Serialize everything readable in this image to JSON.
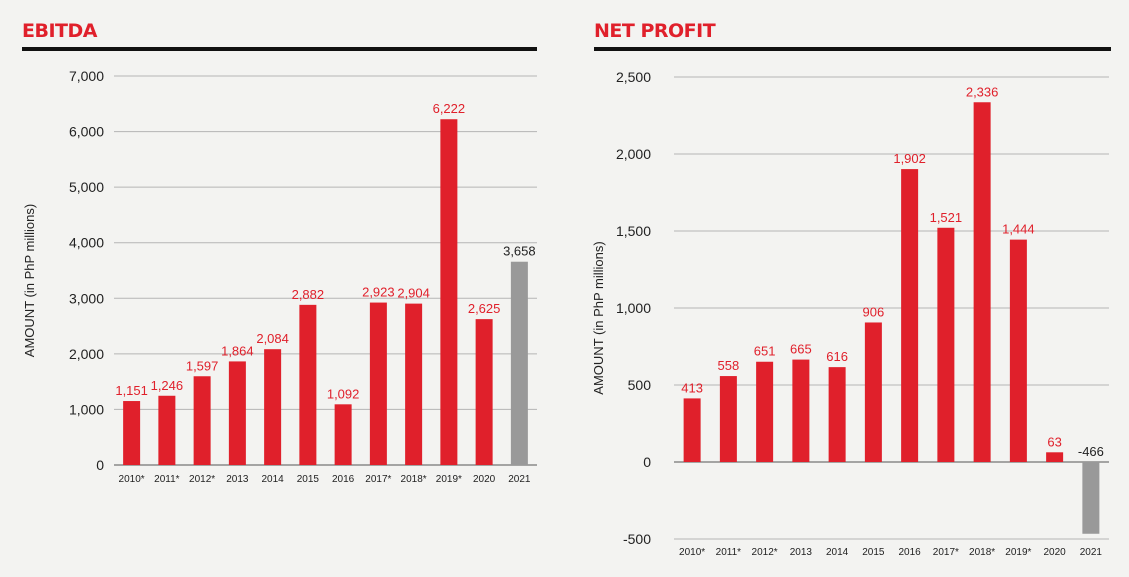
{
  "colors": {
    "accent": "#e0202b",
    "highlight": "#999999",
    "grid": "#b5b5b5",
    "text": "#222222"
  },
  "chart_data": [
    {
      "type": "bar",
      "title": "EBITDA",
      "ylabel": "AMOUNT (in PhP millions)",
      "xlabel": "",
      "ylim": [
        0,
        7000
      ],
      "yticks": [
        0,
        1000,
        2000,
        3000,
        4000,
        5000,
        6000,
        7000
      ],
      "ytick_labels": [
        "0",
        "1,000",
        "2,000",
        "3,000",
        "4,000",
        "5,000",
        "6,000",
        "7,000"
      ],
      "grid": true,
      "categories": [
        "2010*",
        "2011*",
        "2012*",
        "2013",
        "2014",
        "2015",
        "2016",
        "2017*",
        "2018*",
        "2019*",
        "2020",
        "2021"
      ],
      "values": [
        1151,
        1246,
        1597,
        1864,
        2084,
        2882,
        1092,
        2923,
        2904,
        6222,
        2625,
        3658
      ],
      "value_labels": [
        "1,151",
        "1,246",
        "1,597",
        "1,864",
        "2,084",
        "2,882",
        "1,092",
        "2,923",
        "2,904",
        "6,222",
        "2,625",
        "3,658"
      ],
      "bar_colors": [
        "#e0202b",
        "#e0202b",
        "#e0202b",
        "#e0202b",
        "#e0202b",
        "#e0202b",
        "#e0202b",
        "#e0202b",
        "#e0202b",
        "#e0202b",
        "#e0202b",
        "#999999"
      ],
      "label_colors": [
        "#e0202b",
        "#e0202b",
        "#e0202b",
        "#e0202b",
        "#e0202b",
        "#e0202b",
        "#e0202b",
        "#e0202b",
        "#e0202b",
        "#e0202b",
        "#e0202b",
        "#222222"
      ]
    },
    {
      "type": "bar",
      "title": "NET PROFIT",
      "ylabel": "AMOUNT (in PhP millions)",
      "xlabel": "",
      "ylim": [
        -500,
        2500
      ],
      "yticks": [
        -500,
        0,
        500,
        1000,
        1500,
        2000,
        2500
      ],
      "ytick_labels": [
        "-500",
        "0",
        "500",
        "1,000",
        "1,500",
        "2,000",
        "2,500"
      ],
      "grid": true,
      "categories": [
        "2010*",
        "2011*",
        "2012*",
        "2013",
        "2014",
        "2015",
        "2016",
        "2017*",
        "2018*",
        "2019*",
        "2020",
        "2021"
      ],
      "values": [
        413,
        558,
        651,
        665,
        616,
        906,
        1902,
        1521,
        2336,
        1444,
        63,
        -466
      ],
      "value_labels": [
        "413",
        "558",
        "651",
        "665",
        "616",
        "906",
        "1,902",
        "1,521",
        "2,336",
        "1,444",
        "63",
        "-466"
      ],
      "bar_colors": [
        "#e0202b",
        "#e0202b",
        "#e0202b",
        "#e0202b",
        "#e0202b",
        "#e0202b",
        "#e0202b",
        "#e0202b",
        "#e0202b",
        "#e0202b",
        "#e0202b",
        "#999999"
      ],
      "label_colors": [
        "#e0202b",
        "#e0202b",
        "#e0202b",
        "#e0202b",
        "#e0202b",
        "#e0202b",
        "#e0202b",
        "#e0202b",
        "#e0202b",
        "#e0202b",
        "#e0202b",
        "#222222"
      ]
    }
  ]
}
